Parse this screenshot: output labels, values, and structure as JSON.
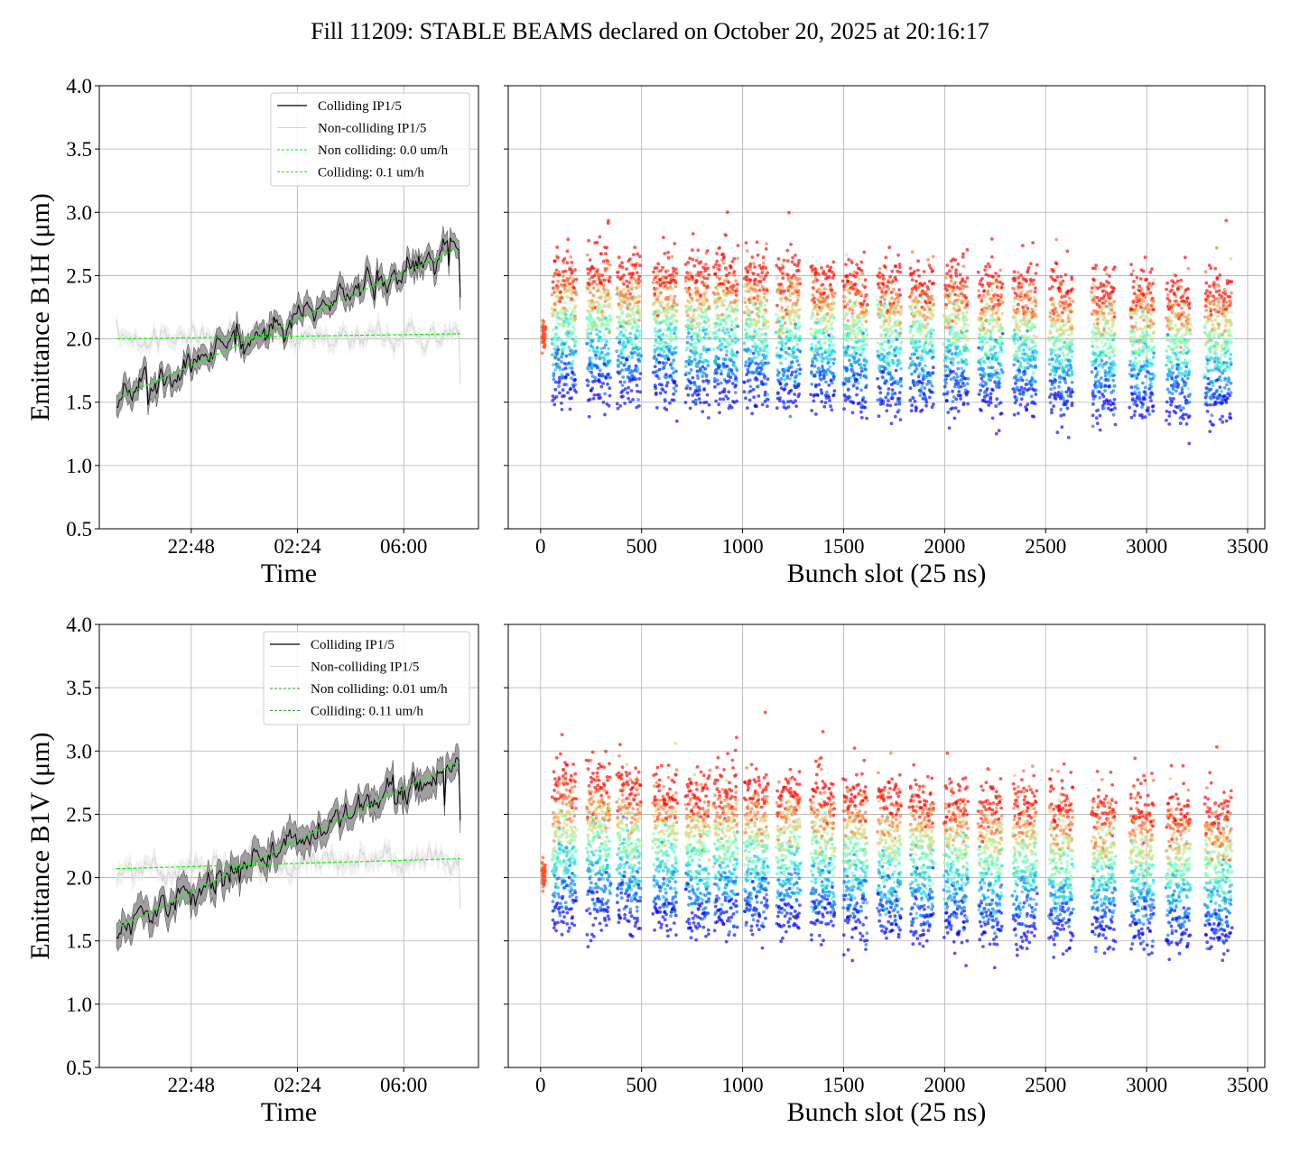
{
  "title": "Fill 11209: STABLE BEAMS declared on October 20, 2025 at 20:16:17",
  "colors": {
    "colliding": "#000000",
    "non_colliding": "#d3d3d3",
    "band_colliding": "#808080",
    "band_non_colliding": "#e6e6e6",
    "fit": "#00ff00",
    "fit_dark": "#2ca02c",
    "grid": "#b0b0b0",
    "colormap": "rainbow"
  },
  "chart_data": [
    {
      "type": "line",
      "panel": "top-left",
      "ylabel": "Emittance B1H (μm)",
      "xlabel": "Time",
      "ylim": [
        0.5,
        4.0
      ],
      "yticks": [
        "0.5",
        "1.0",
        "1.5",
        "2.0",
        "2.5",
        "3.0",
        "3.5",
        "4.0"
      ],
      "xlim": [
        "19:41",
        "08:32"
      ],
      "xticks": [
        "22:48",
        "02:24",
        "06:00"
      ],
      "grid": true,
      "legend_position": "top-right",
      "series": [
        {
          "name": "Colliding IP1/5",
          "start": 1.55,
          "end": 2.75,
          "band": 0.08
        },
        {
          "name": "Non-colliding IP1/5",
          "start": 2.0,
          "end": 2.04,
          "band": 0.06
        },
        {
          "name": "Non colliding: 0.0 um/h",
          "style": "dashed",
          "start": 2.0,
          "end": 2.04
        },
        {
          "name": "Colliding: 0.1 um/h",
          "style": "dashed",
          "start": 1.53,
          "end": 2.72
        }
      ],
      "time_range": [
        "20:16",
        "07:55"
      ]
    },
    {
      "type": "scatter",
      "panel": "top-right",
      "xlabel": "Bunch slot (25 ns)",
      "xlim": [
        -160,
        3585
      ],
      "xticks": [
        "0",
        "500",
        "1000",
        "1500",
        "2000",
        "2500",
        "3000",
        "3500"
      ],
      "ylim": [
        0.5,
        4.0
      ],
      "grid": true,
      "color_by": "time",
      "emittance_start": 1.65,
      "emittance_end_first_train": 2.55,
      "emittance_end_last_train": 2.35,
      "early_drop_per_1000_slots": 0.05
    },
    {
      "type": "line",
      "panel": "bottom-left",
      "ylabel": "Emittance B1V (μm)",
      "xlabel": "Time",
      "ylim": [
        0.5,
        4.0
      ],
      "yticks": [
        "0.5",
        "1.0",
        "1.5",
        "2.0",
        "2.5",
        "3.0",
        "3.5",
        "4.0"
      ],
      "xlim": [
        "19:41",
        "08:32"
      ],
      "xticks": [
        "22:48",
        "02:24",
        "06:00"
      ],
      "grid": true,
      "legend_position": "top-right",
      "series": [
        {
          "name": "Colliding IP1/5",
          "start": 1.58,
          "end": 2.92,
          "band": 0.1
        },
        {
          "name": "Non-colliding IP1/5",
          "start": 2.07,
          "end": 2.15,
          "band": 0.07
        },
        {
          "name": "Non colliding: 0.01 um/h",
          "style": "dashed",
          "start": 2.07,
          "end": 2.15
        },
        {
          "name": "Colliding: 0.11 um/h",
          "style": "dashed",
          "start": 1.6,
          "end": 2.92
        }
      ],
      "time_range": [
        "20:16",
        "07:55"
      ]
    },
    {
      "type": "scatter",
      "panel": "bottom-right",
      "xlabel": "Bunch slot (25 ns)",
      "xlim": [
        -160,
        3585
      ],
      "xticks": [
        "0",
        "500",
        "1000",
        "1500",
        "2000",
        "2500",
        "3000",
        "3500"
      ],
      "ylim": [
        0.5,
        4.0
      ],
      "grid": true,
      "color_by": "time",
      "emittance_start": 1.75,
      "emittance_end_first_train": 2.75,
      "emittance_end_last_train": 2.5,
      "early_drop_per_1000_slots": 0.06
    }
  ],
  "trains": [
    [
      10,
      12
    ],
    [
      60,
      120
    ],
    [
      230,
      120
    ],
    [
      380,
      120
    ],
    [
      560,
      120
    ],
    [
      720,
      120
    ],
    [
      860,
      120
    ],
    [
      1010,
      120
    ],
    [
      1170,
      120
    ],
    [
      1340,
      120
    ],
    [
      1500,
      120
    ],
    [
      1670,
      120
    ],
    [
      1830,
      120
    ],
    [
      2000,
      120
    ],
    [
      2170,
      120
    ],
    [
      2340,
      120
    ],
    [
      2520,
      120
    ],
    [
      2730,
      120
    ],
    [
      2920,
      120
    ],
    [
      3100,
      120
    ],
    [
      3290,
      130
    ]
  ]
}
